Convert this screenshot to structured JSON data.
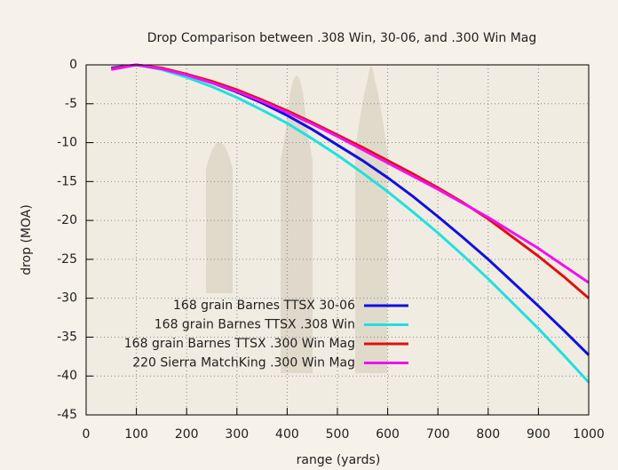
{
  "chart_data": {
    "type": "line",
    "title": "Drop Comparison between .308 Win, 30-06, and .300 Win Mag",
    "x_label": "range (yards)",
    "y_label": "drop (MOA)",
    "x": [
      50,
      100,
      150,
      200,
      250,
      300,
      350,
      400,
      450,
      500,
      550,
      600,
      650,
      700,
      750,
      800,
      850,
      900,
      950,
      1000
    ],
    "series": [
      {
        "name": "168 grain Barnes TTSX 30-06",
        "color": "#1010e0",
        "values": [
          -0.4,
          0,
          -0.5,
          -1.3,
          -2.3,
          -3.5,
          -4.9,
          -6.5,
          -8.3,
          -10.3,
          -12.3,
          -14.5,
          -16.9,
          -19.5,
          -22.2,
          -25.0,
          -28.0,
          -31.0,
          -34.1,
          -37.3
        ]
      },
      {
        "name": "168 grain Barnes TTSX .308 Win",
        "color": "#20e0e0",
        "values": [
          -0.5,
          0,
          -0.6,
          -1.6,
          -2.8,
          -4.2,
          -5.8,
          -7.5,
          -9.5,
          -11.6,
          -13.9,
          -16.3,
          -18.9,
          -21.6,
          -24.5,
          -27.5,
          -30.7,
          -33.9,
          -37.3,
          -40.8
        ]
      },
      {
        "name": "168 grain Barnes TTSX .300 Win Mag",
        "color": "#e01010",
        "values": [
          -0.5,
          0,
          -0.4,
          -1.2,
          -2.1,
          -3.2,
          -4.5,
          -5.9,
          -7.4,
          -9.0,
          -10.6,
          -12.3,
          -14.0,
          -15.8,
          -17.7,
          -19.8,
          -22.2,
          -24.6,
          -27.2,
          -30.0
        ]
      },
      {
        "name": "220 Sierra MatchKing .300 Win Mag",
        "color": "#f010f0",
        "values": [
          -0.6,
          0,
          -0.5,
          -1.3,
          -2.3,
          -3.4,
          -4.7,
          -6.1,
          -7.6,
          -9.2,
          -10.9,
          -12.6,
          -14.3,
          -16.0,
          -17.8,
          -19.6,
          -21.6,
          -23.6,
          -25.8,
          -28.0
        ]
      }
    ],
    "xlim": [
      0,
      1000
    ],
    "xticks": [
      0,
      100,
      200,
      300,
      400,
      500,
      600,
      700,
      800,
      900,
      1000
    ],
    "ylim": [
      -45,
      0
    ],
    "yticks": [
      -45,
      -40,
      -35,
      -30,
      -25,
      -20,
      -15,
      -10,
      -5,
      0
    ],
    "grid": true,
    "legend": "lower-right"
  }
}
